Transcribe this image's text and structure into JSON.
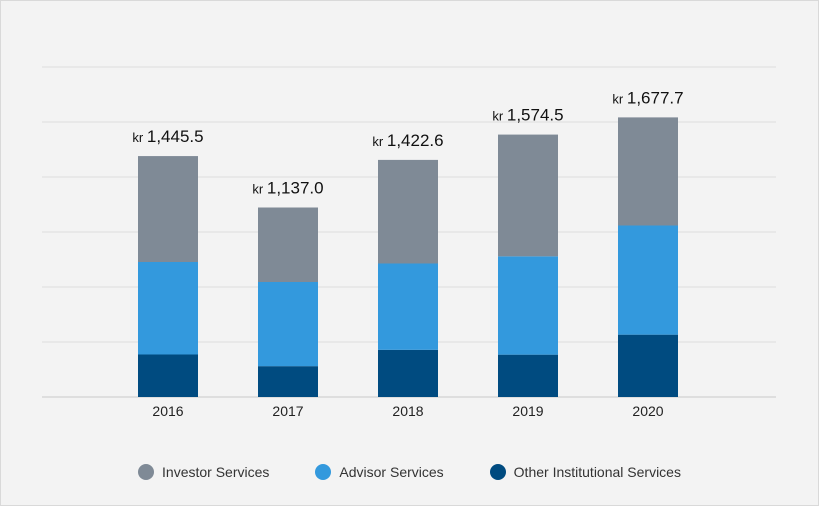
{
  "chart_data": {
    "type": "bar",
    "stacked": true,
    "categories": [
      "2016",
      "2017",
      "2018",
      "2019",
      "2020"
    ],
    "currency_prefix": "kr",
    "totals": [
      "1,445.5",
      "1,137.0",
      "1,422.6",
      "1,574.5",
      "1,677.7"
    ],
    "total_values": [
      1445.5,
      1137.0,
      1422.6,
      1574.5,
      1677.7
    ],
    "series": [
      {
        "name": "Other Institutional Services",
        "color": "#004b80",
        "values": [
          255,
          185,
          283,
          254,
          374
        ]
      },
      {
        "name": "Advisor Services",
        "color": "#3399dd",
        "values": [
          555,
          505,
          518,
          590,
          655
        ]
      },
      {
        "name": "Investor Services",
        "color": "#7f8a96",
        "values": [
          635.5,
          447.0,
          621.6,
          730.5,
          648.7
        ]
      }
    ],
    "ylim": [
      0,
      1980
    ],
    "grid": true,
    "legend_position": "bottom"
  },
  "legend": [
    {
      "label": "Investor Services",
      "color": "#7f8a96"
    },
    {
      "label": "Advisor Services",
      "color": "#3399dd"
    },
    {
      "label": "Other Institutional Services",
      "color": "#004b80"
    }
  ]
}
